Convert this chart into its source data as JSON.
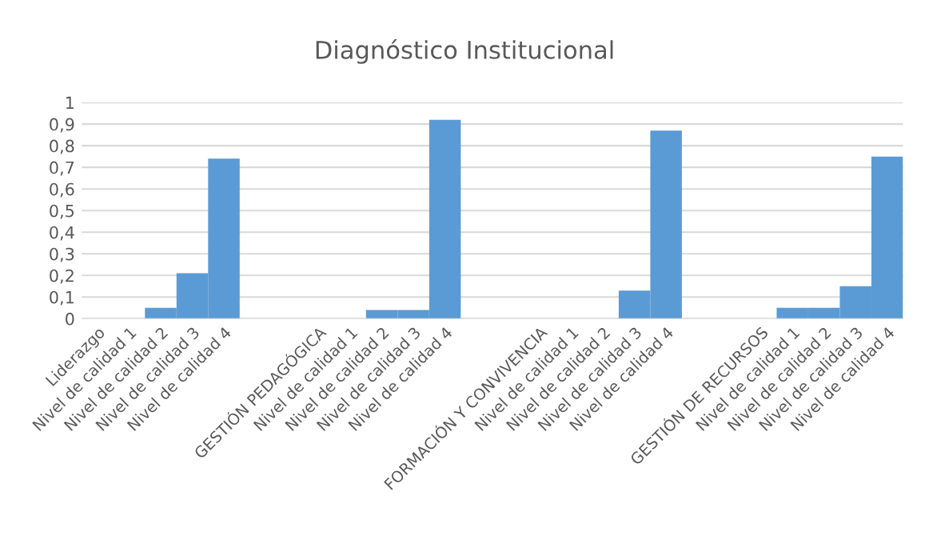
{
  "chart_data": {
    "type": "bar",
    "title": "Diagnóstico Institucional",
    "categories": [
      "Liderazgo",
      "Nivel de calidad 1",
      "Nivel de calidad 2",
      "Nivel de calidad 3",
      "Nivel de calidad 4",
      null,
      null,
      "GESTIÓN PEDAGÓGICA",
      "Nivel de calidad 1",
      "Nivel de calidad 2",
      "Nivel de calidad 3",
      "Nivel de calidad 4",
      null,
      null,
      "FORMACIÓN Y CONVIVENCIA",
      "Nivel de calidad 1",
      "Nivel de calidad 2",
      "Nivel de calidad 3",
      "Nivel de calidad 4",
      null,
      null,
      "GESTIÓN DE RECURSOS",
      "Nivel de calidad 1",
      "Nivel de calidad 2",
      "Nivel de calidad 3",
      "Nivel de calidad 4"
    ],
    "values": [
      0,
      0,
      0.05,
      0.21,
      0.74,
      null,
      null,
      0,
      0,
      0.04,
      0.04,
      0.92,
      null,
      null,
      0,
      0,
      0,
      0.13,
      0.87,
      null,
      null,
      0,
      0.05,
      0.05,
      0.15,
      0.75
    ],
    "color": "#5b9bd5",
    "ylim": [
      0,
      1
    ],
    "yticks": [
      {
        "value": 0,
        "label": "0"
      },
      {
        "value": 0.1,
        "label": "0,1"
      },
      {
        "value": 0.2,
        "label": "0,2"
      },
      {
        "value": 0.3,
        "label": "0,3"
      },
      {
        "value": 0.4,
        "label": "0,4"
      },
      {
        "value": 0.5,
        "label": "0,5"
      },
      {
        "value": 0.6,
        "label": "0,6"
      },
      {
        "value": 0.7,
        "label": "0,7"
      },
      {
        "value": 0.8,
        "label": "0,8"
      },
      {
        "value": 0.9,
        "label": "0,9"
      },
      {
        "value": 1,
        "label": "1"
      }
    ],
    "grid": "y"
  }
}
